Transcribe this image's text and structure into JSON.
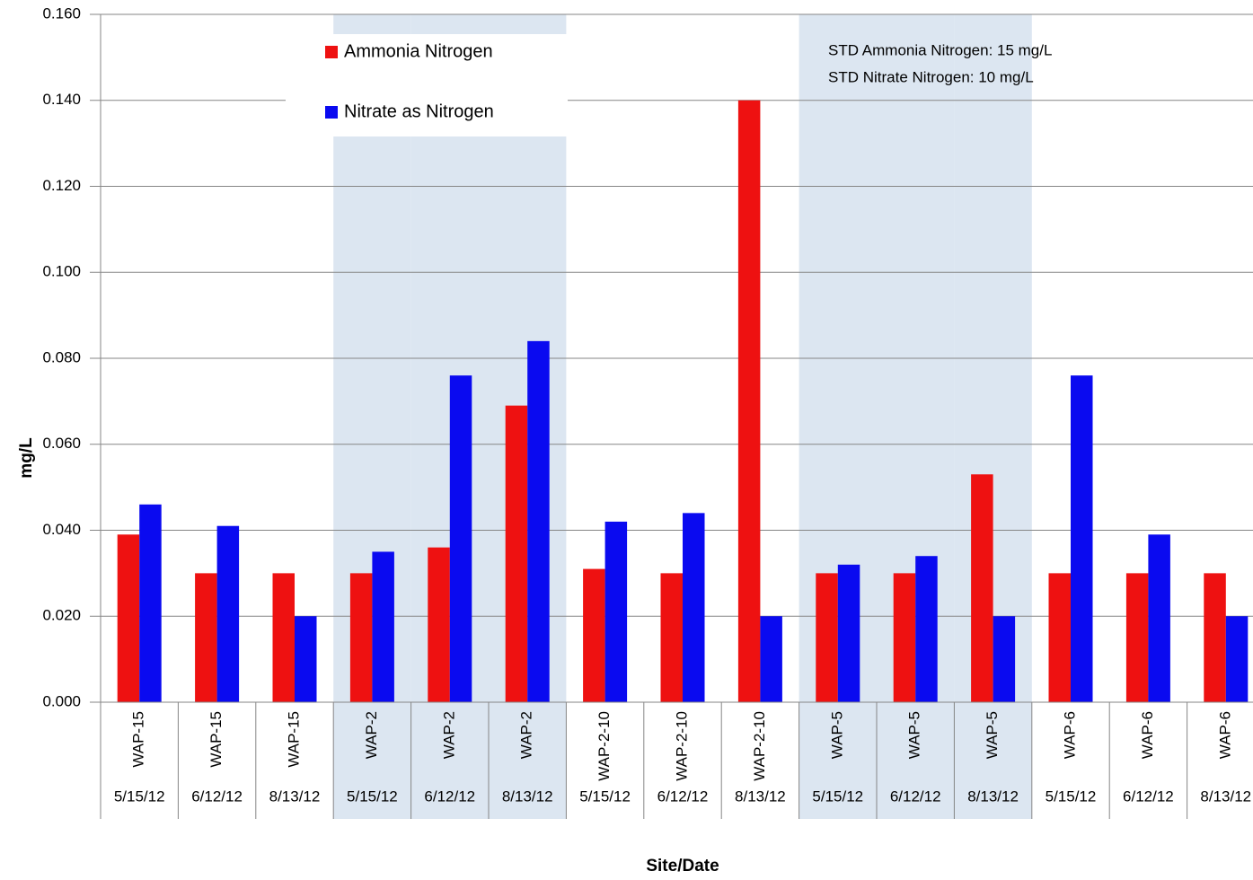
{
  "chart_data": {
    "type": "bar",
    "x_label": "Site/Date",
    "y_label": "mg/L",
    "categories": [
      [
        "WAP-15",
        "5/15/12"
      ],
      [
        "WAP-15",
        "6/12/12"
      ],
      [
        "WAP-15",
        "8/13/12"
      ],
      [
        "WAP-2",
        "5/15/12"
      ],
      [
        "WAP-2",
        "6/12/12"
      ],
      [
        "WAP-2",
        "8/13/12"
      ],
      [
        "WAP-2-10",
        "5/15/12"
      ],
      [
        "WAP-2-10",
        "6/12/12"
      ],
      [
        "WAP-2-10",
        "8/13/12"
      ],
      [
        "WAP-5",
        "5/15/12"
      ],
      [
        "WAP-5",
        "6/12/12"
      ],
      [
        "WAP-5",
        "8/13/12"
      ],
      [
        "WAP-6",
        "5/15/12"
      ],
      [
        "WAP-6",
        "6/12/12"
      ],
      [
        "WAP-6",
        "8/13/12"
      ]
    ],
    "series": [
      {
        "name": "Ammonia Nitrogen",
        "color": "#ee1111",
        "values": [
          0.039,
          0.03,
          0.03,
          0.03,
          0.036,
          0.069,
          0.031,
          0.03,
          0.14,
          0.03,
          0.03,
          0.053,
          0.03,
          0.03,
          0.03
        ]
      },
      {
        "name": "Nitrate as Nitrogen",
        "color": "#0a0af0",
        "values": [
          0.046,
          0.041,
          0.02,
          0.035,
          0.076,
          0.084,
          0.042,
          0.044,
          0.02,
          0.032,
          0.034,
          0.02,
          0.076,
          0.039,
          0.02
        ]
      }
    ],
    "annotations": [
      "STD Ammonia Nitrogen: 15 mg/L",
      "STD Nitrate Nitrogen: 10 mg/L"
    ],
    "ylim": [
      0,
      0.16
    ],
    "yticks": [
      {
        "value": 0,
        "label": "0.000"
      },
      {
        "value": 0.02,
        "label": "0.020"
      },
      {
        "value": 0.04,
        "label": "0.040"
      },
      {
        "value": 0.06,
        "label": "0.060"
      },
      {
        "value": 0.08,
        "label": "0.080"
      },
      {
        "value": 0.1,
        "label": "0.100"
      },
      {
        "value": 0.12,
        "label": "0.120"
      },
      {
        "value": 0.14,
        "label": "0.140"
      },
      {
        "value": 0.16,
        "label": "0.160"
      }
    ],
    "grid": true,
    "band_color": "#dce6f1"
  }
}
